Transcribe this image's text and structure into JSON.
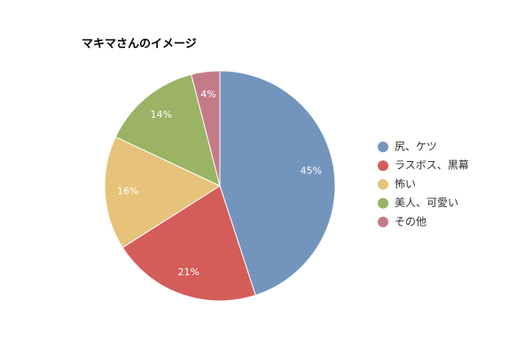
{
  "chart_data": {
    "type": "pie",
    "title": "マキマさんのイメージ",
    "categories": [
      "尻、ケツ",
      "ラスボス、黒幕",
      "怖い",
      "美人、可愛い",
      "その他"
    ],
    "values": [
      45,
      21,
      16,
      14,
      4
    ],
    "value_labels": [
      "45%",
      "21%",
      "16%",
      "14%",
      "4%"
    ],
    "colors": [
      "#7395bd",
      "#d45d5a",
      "#e6c27a",
      "#9ab365",
      "#c47b88"
    ],
    "legend": "right"
  }
}
